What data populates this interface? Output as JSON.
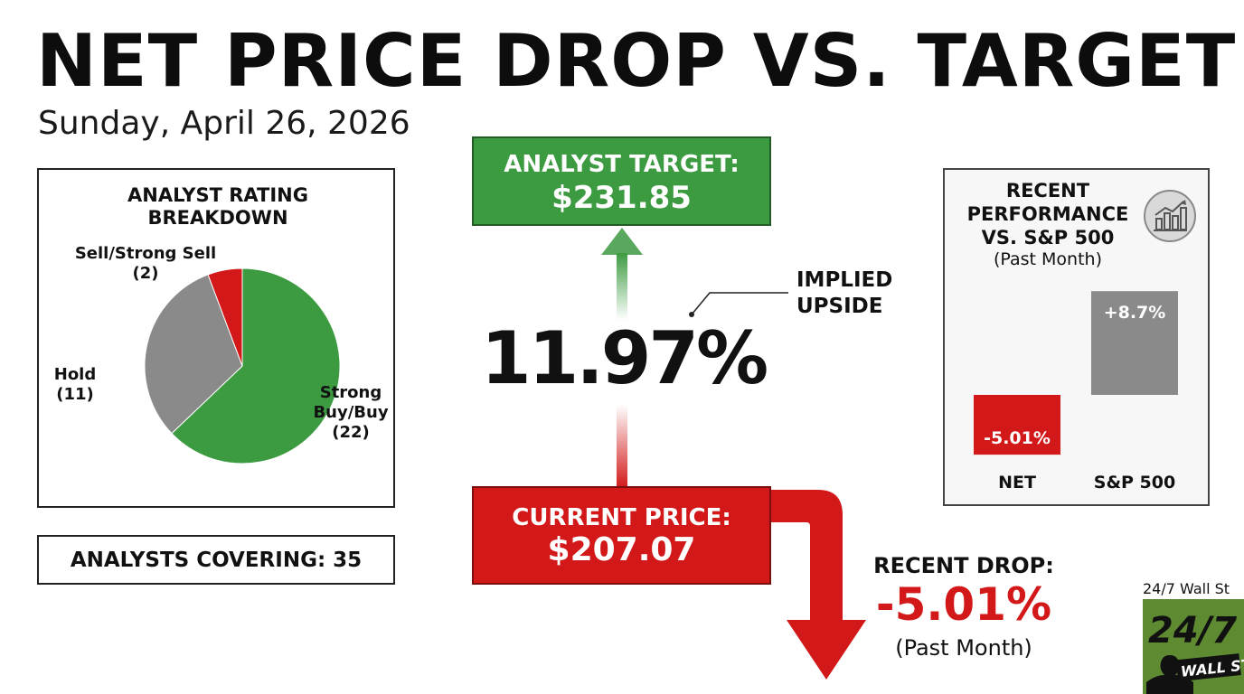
{
  "title": "NET PRICE DROP VS. TARGET",
  "date": "Sunday, April 26, 2026",
  "analyst_target": {
    "label": "ANALYST TARGET:",
    "value": "$231.85"
  },
  "current_price": {
    "label": "CURRENT PRICE:",
    "value": "$207.07"
  },
  "implied_upside": {
    "value": "11.97%",
    "label_line1": "IMPLIED",
    "label_line2": "UPSIDE"
  },
  "recent_drop": {
    "label": "RECENT DROP:",
    "value": "-5.01%",
    "period": "(Past Month)"
  },
  "analysts_covering": "ANALYSTS COVERING: 35",
  "logo": {
    "caption": "24/7 Wall St",
    "text_big": "24/7",
    "text_small": "WALL ST"
  },
  "colors": {
    "green": "#3c9b41",
    "red": "#d21818",
    "gray": "#8a8a8a"
  },
  "chart_data": [
    {
      "type": "pie",
      "title_line1": "ANALYST RATING",
      "title_line2": "BREAKDOWN",
      "slices": [
        {
          "label_line1": "Strong",
          "label_line2": "Buy/Buy",
          "count_label": "(22)",
          "value": 22,
          "color": "#3c9b41"
        },
        {
          "label_line1": "Hold",
          "label_line2": "",
          "count_label": "(11)",
          "value": 11,
          "color": "#8a8a8a"
        },
        {
          "label_line1": "Sell/Strong Sell",
          "label_line2": "",
          "count_label": "(2)",
          "value": 2,
          "color": "#d21818"
        }
      ]
    },
    {
      "type": "bar",
      "title_line1": "RECENT",
      "title_line2": "PERFORMANCE",
      "title_line3": "VS. S&P 500",
      "subtitle": "(Past Month)",
      "categories": [
        "NET",
        "S&P 500"
      ],
      "values": [
        -5.01,
        8.7
      ],
      "value_labels": [
        "-5.01%",
        "+8.7%"
      ],
      "colors": [
        "#d21818",
        "#8a8a8a"
      ],
      "icon": "bar-chart-icon"
    }
  ]
}
